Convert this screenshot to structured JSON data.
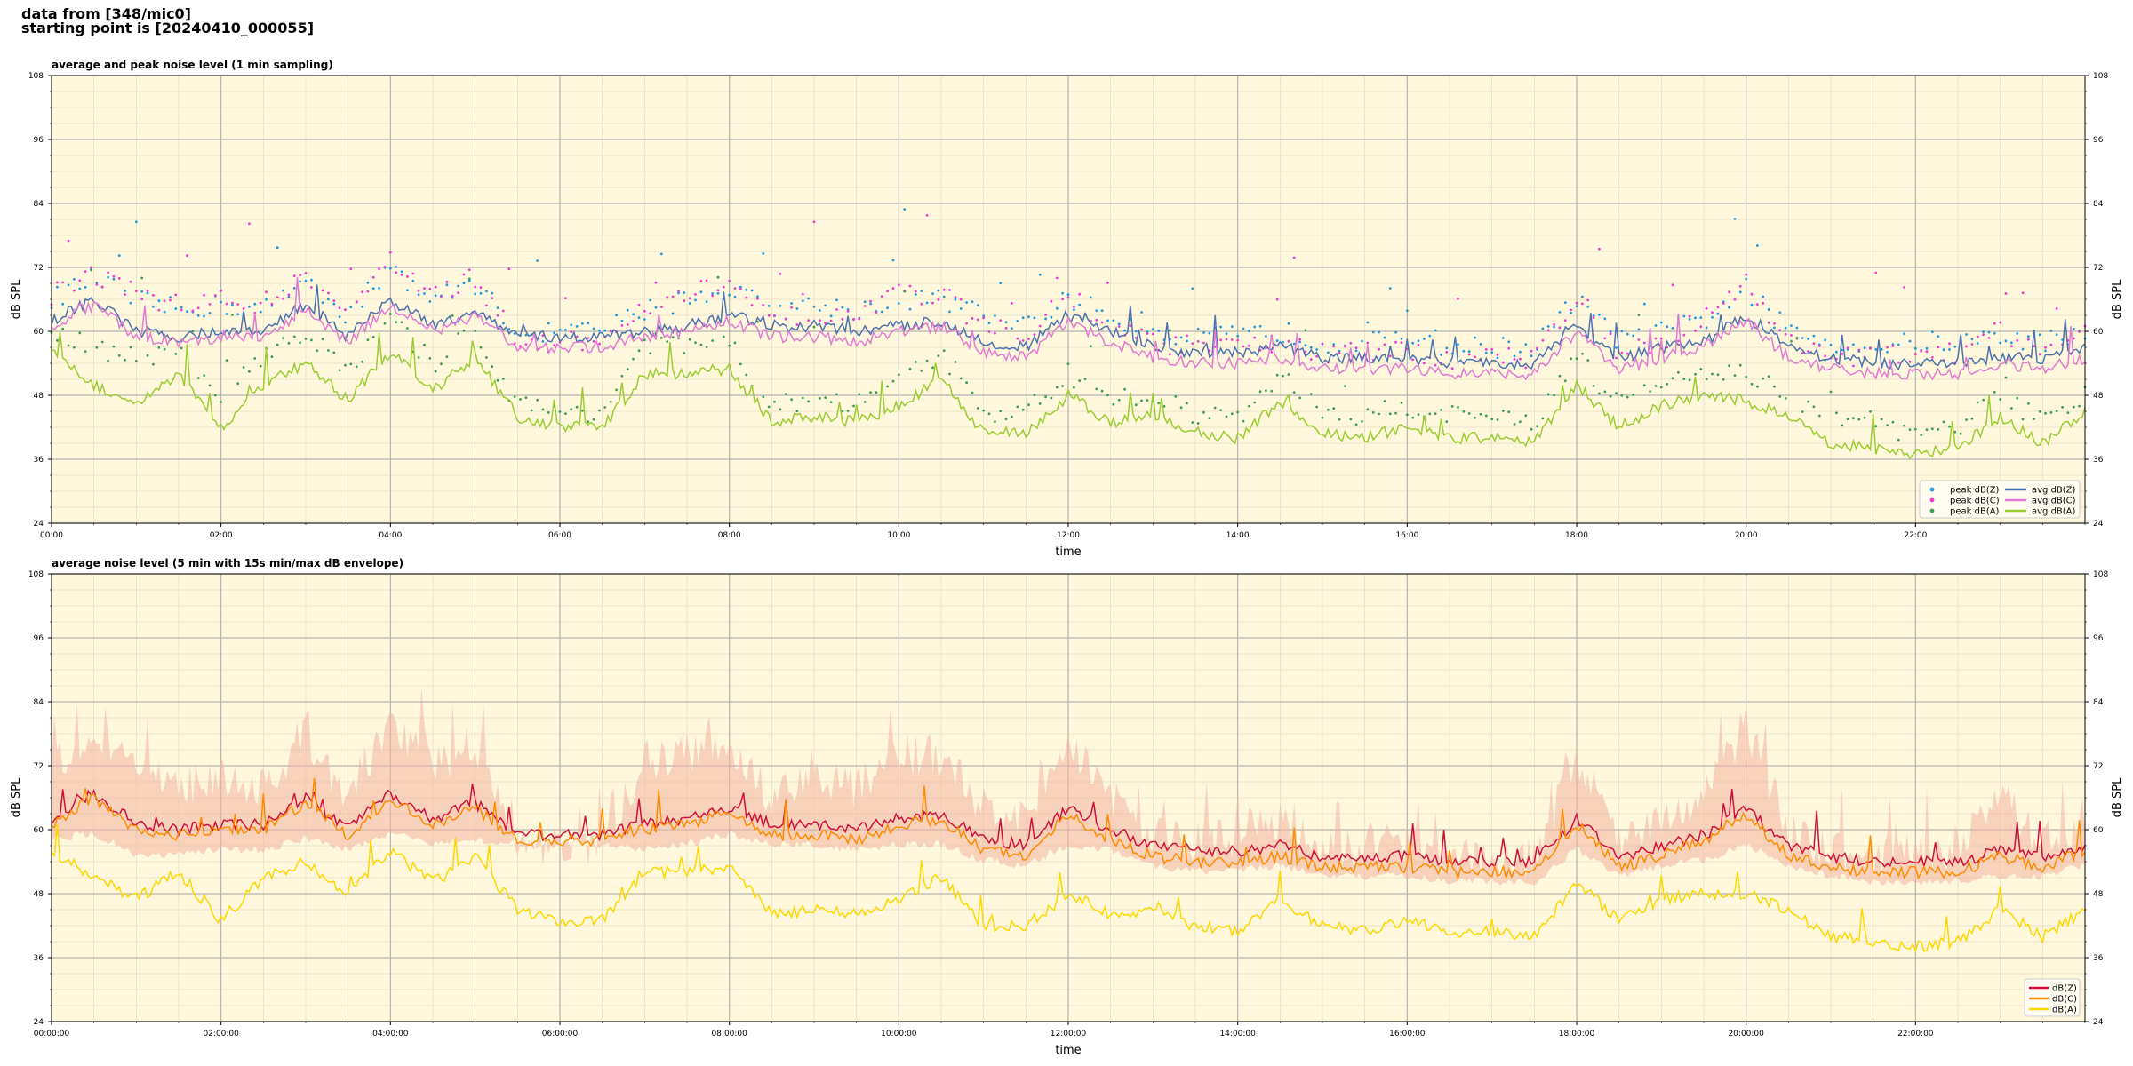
{
  "header": {
    "line1": "data from [348/mic0]",
    "line2": "starting point is [20240410_000055]"
  },
  "chart_data": [
    {
      "type": "line",
      "title": "average and peak noise level (1 min sampling)",
      "xlabel": "time",
      "ylabel": "dB SPL",
      "ylabel_right": "dB SPL",
      "ylim": [
        24,
        108
      ],
      "yticks": [
        24,
        36,
        48,
        60,
        72,
        84,
        96,
        108
      ],
      "xlim_hours": [
        0,
        24
      ],
      "xtick_labels": [
        "00:00",
        "02:00",
        "04:00",
        "06:00",
        "08:00",
        "10:00",
        "12:00",
        "14:00",
        "16:00",
        "18:00",
        "20:00",
        "22:00"
      ],
      "grid": true,
      "legend_position": "lower-right",
      "legend_columns": 2,
      "x_hours": [
        0,
        0.5,
        1,
        1.5,
        2,
        2.5,
        3,
        3.5,
        4,
        4.5,
        5,
        5.5,
        6,
        6.5,
        7,
        7.5,
        8,
        8.5,
        9,
        9.5,
        10,
        10.5,
        11,
        11.5,
        12,
        12.5,
        13,
        13.5,
        14,
        14.5,
        15,
        15.5,
        16,
        16.5,
        17,
        17.5,
        18,
        18.5,
        19,
        19.5,
        20,
        20.5,
        21,
        21.5,
        22,
        22.5,
        23,
        23.5,
        24
      ],
      "series": [
        {
          "name": "peak dB(Z)",
          "kind": "points",
          "color": "#1f9ae0",
          "values": [
            66,
            70,
            66,
            64,
            65,
            64,
            70,
            63,
            72,
            66,
            69,
            60,
            60,
            60,
            64,
            66,
            68,
            64,
            65,
            64,
            66,
            66,
            63,
            62,
            66,
            63,
            60,
            59,
            59,
            60,
            58,
            58,
            58,
            57,
            57,
            57,
            66,
            58,
            60,
            62,
            68,
            60,
            58,
            57,
            58,
            58,
            59,
            58,
            60
          ]
        },
        {
          "name": "peak dB(C)",
          "kind": "points",
          "color": "#f03ad0",
          "values": [
            67,
            71,
            67,
            65,
            66,
            65,
            71,
            64,
            73,
            67,
            70,
            58,
            58,
            58,
            65,
            67,
            69,
            62,
            63,
            62,
            67,
            67,
            61,
            60,
            67,
            61,
            58,
            57,
            57,
            58,
            56,
            56,
            56,
            55,
            55,
            55,
            67,
            56,
            58,
            63,
            69,
            58,
            56,
            55,
            56,
            56,
            60,
            57,
            59
          ]
        },
        {
          "name": "peak dB(A)",
          "kind": "points",
          "color": "#3aa050",
          "values": [
            60,
            57,
            55,
            57,
            48,
            56,
            60,
            52,
            62,
            54,
            60,
            46,
            45,
            45,
            58,
            57,
            58,
            46,
            47,
            46,
            50,
            56,
            45,
            45,
            52,
            47,
            48,
            44,
            44,
            52,
            45,
            44,
            46,
            44,
            44,
            43,
            55,
            46,
            50,
            53,
            52,
            48,
            44,
            42,
            41,
            42,
            48,
            43,
            48
          ]
        },
        {
          "name": "avg dB(Z)",
          "kind": "line",
          "color": "#4c72b0",
          "values": [
            62,
            66,
            60,
            59,
            60,
            60,
            65,
            59,
            66,
            61,
            64,
            59,
            59,
            59,
            60,
            61,
            63,
            61,
            61,
            60,
            61,
            62,
            58,
            57,
            63,
            60,
            57,
            56,
            56,
            57,
            55,
            55,
            55,
            54,
            54,
            54,
            61,
            55,
            57,
            58,
            63,
            57,
            55,
            54,
            54,
            54,
            55,
            55,
            57
          ]
        },
        {
          "name": "avg dB(C)",
          "kind": "line",
          "color": "#e27ad2",
          "values": [
            61,
            65,
            59,
            58,
            59,
            59,
            64,
            58,
            65,
            60,
            63,
            57,
            57,
            57,
            59,
            60,
            62,
            59,
            59,
            58,
            60,
            61,
            56,
            55,
            62,
            58,
            55,
            54,
            54,
            55,
            53,
            53,
            53,
            52,
            52,
            52,
            60,
            53,
            55,
            57,
            62,
            55,
            53,
            52,
            52,
            52,
            54,
            53,
            55
          ]
        },
        {
          "name": "avg dB(A)",
          "kind": "line",
          "color": "#9acd32",
          "values": [
            56,
            50,
            46,
            52,
            42,
            50,
            54,
            47,
            56,
            49,
            55,
            44,
            42,
            42,
            52,
            52,
            53,
            43,
            44,
            43,
            46,
            51,
            41,
            41,
            48,
            43,
            44,
            41,
            40,
            47,
            41,
            40,
            42,
            40,
            40,
            39,
            50,
            42,
            46,
            48,
            47,
            44,
            39,
            38,
            37,
            38,
            44,
            39,
            45
          ]
        }
      ]
    },
    {
      "type": "area",
      "title": "average noise level (5 min with 15s min/max dB envelope)",
      "xlabel": "time",
      "ylabel": "dB SPL",
      "ylabel_right": "dB SPL",
      "ylim": [
        24,
        108
      ],
      "yticks": [
        24,
        36,
        48,
        60,
        72,
        84,
        96,
        108
      ],
      "xlim_hours": [
        0,
        24
      ],
      "xtick_labels": [
        "00:00:00",
        "02:00:00",
        "04:00:00",
        "06:00:00",
        "08:00:00",
        "10:00:00",
        "12:00:00",
        "14:00:00",
        "16:00:00",
        "18:00:00",
        "20:00:00",
        "22:00:00"
      ],
      "grid": true,
      "legend_position": "lower-right",
      "x_hours": [
        0,
        0.5,
        1,
        1.5,
        2,
        2.5,
        3,
        3.5,
        4,
        4.5,
        5,
        5.5,
        6,
        6.5,
        7,
        7.5,
        8,
        8.5,
        9,
        9.5,
        10,
        10.5,
        11,
        11.5,
        12,
        12.5,
        13,
        13.5,
        14,
        14.5,
        15,
        15.5,
        16,
        16.5,
        17,
        17.5,
        18,
        18.5,
        19,
        19.5,
        20,
        20.5,
        21,
        21.5,
        22,
        22.5,
        23,
        23.5,
        24
      ],
      "envelope": {
        "color": "#f4b2a0",
        "min": [
          59,
          60,
          56,
          56,
          57,
          57,
          59,
          57,
          60,
          58,
          59,
          58,
          58,
          58,
          57,
          58,
          60,
          58,
          58,
          57,
          58,
          58,
          55,
          54,
          58,
          57,
          54,
          53,
          53,
          54,
          52,
          52,
          52,
          51,
          51,
          51,
          57,
          52,
          54,
          55,
          58,
          54,
          52,
          51,
          51,
          51,
          52,
          52,
          54
        ],
        "max": [
          74,
          82,
          76,
          72,
          74,
          72,
          82,
          70,
          84,
          76,
          80,
          61,
          60,
          61,
          76,
          78,
          80,
          70,
          74,
          72,
          78,
          78,
          68,
          66,
          80,
          70,
          64,
          62,
          62,
          66,
          60,
          60,
          62,
          59,
          59,
          58,
          78,
          62,
          66,
          70,
          84,
          64,
          60,
          58,
          60,
          60,
          70,
          62,
          62
        ]
      },
      "series": [
        {
          "name": "dB(Z)",
          "color": "#d0103a",
          "values": [
            62,
            67,
            61,
            60,
            61,
            61,
            66,
            60,
            67,
            62,
            65,
            59,
            59,
            59,
            61,
            62,
            64,
            61,
            61,
            60,
            62,
            63,
            58,
            57,
            64,
            60,
            57,
            56,
            56,
            57,
            55,
            55,
            55,
            54,
            54,
            54,
            62,
            55,
            57,
            59,
            64,
            57,
            55,
            54,
            54,
            54,
            56,
            55,
            57
          ]
        },
        {
          "name": "dB(C)",
          "color": "#ff8c00",
          "values": [
            61,
            66,
            60,
            59,
            60,
            60,
            65,
            59,
            66,
            61,
            64,
            58,
            58,
            58,
            60,
            61,
            63,
            59,
            59,
            58,
            61,
            62,
            56,
            55,
            63,
            58,
            55,
            54,
            54,
            55,
            53,
            53,
            53,
            52,
            52,
            52,
            61,
            53,
            55,
            58,
            63,
            55,
            53,
            52,
            52,
            52,
            55,
            53,
            56
          ]
        },
        {
          "name": "dB(A)",
          "color": "#ffd700",
          "values": [
            56,
            51,
            47,
            52,
            43,
            51,
            54,
            48,
            56,
            50,
            55,
            45,
            43,
            43,
            52,
            52,
            53,
            44,
            45,
            44,
            47,
            51,
            42,
            42,
            48,
            44,
            45,
            42,
            41,
            47,
            42,
            41,
            43,
            41,
            41,
            40,
            50,
            43,
            47,
            48,
            48,
            45,
            40,
            39,
            38,
            39,
            45,
            40,
            45
          ]
        }
      ]
    }
  ]
}
